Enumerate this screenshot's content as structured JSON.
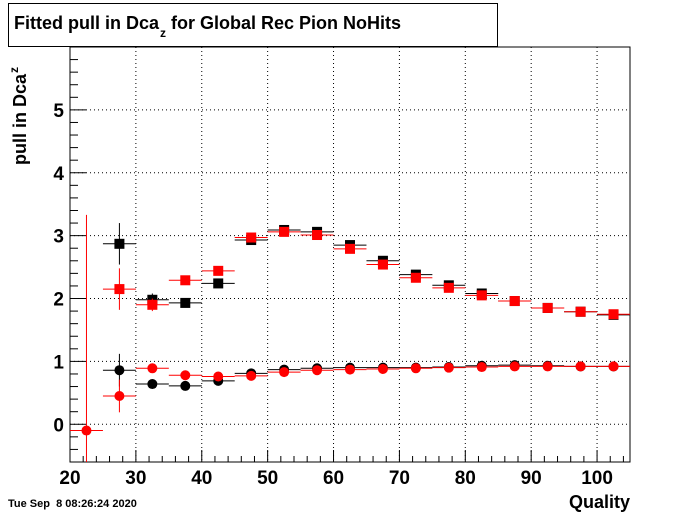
{
  "title": {
    "main": "Fitted pull in Dca",
    "sub": "z",
    "rest": " for Global Rec Pion NoHits"
  },
  "ylabel": {
    "main": "pull in Dca",
    "sub": "z"
  },
  "xlabel": "Quality",
  "timestamp": "Tue Sep  8 08:26:24 2020",
  "chart_data": {
    "type": "scatter",
    "xlim": [
      20,
      105
    ],
    "ylim": [
      -0.6,
      6.0
    ],
    "grid": true,
    "x_ticks": [
      20,
      30,
      40,
      50,
      60,
      70,
      80,
      90,
      100
    ],
    "y_ticks": [
      0,
      1,
      2,
      3,
      4,
      5
    ],
    "x_tick_labels": [
      "20",
      "30",
      "40",
      "50",
      "60",
      "70",
      "80",
      "90",
      "100"
    ],
    "y_tick_labels": [
      "0",
      "1",
      "2",
      "3",
      "4",
      "5"
    ],
    "series": [
      {
        "color": "#000000",
        "marker": "square",
        "points": [
          {
            "x": 27.5,
            "y": 2.87,
            "yerr": 0.33
          },
          {
            "x": 32.5,
            "y": 1.98,
            "yerr": 0.1
          },
          {
            "x": 37.5,
            "y": 1.93,
            "yerr": 0.05
          },
          {
            "x": 42.5,
            "y": 2.24,
            "yerr": 0.03
          },
          {
            "x": 47.5,
            "y": 2.93,
            "yerr": 0.03
          },
          {
            "x": 52.5,
            "y": 3.09,
            "yerr": 0.03
          },
          {
            "x": 57.5,
            "y": 3.06,
            "yerr": 0.03
          },
          {
            "x": 62.5,
            "y": 2.85,
            "yerr": 0.03
          },
          {
            "x": 67.5,
            "y": 2.6,
            "yerr": 0.02
          },
          {
            "x": 72.5,
            "y": 2.38,
            "yerr": 0.02
          },
          {
            "x": 77.5,
            "y": 2.21,
            "yerr": 0.02
          },
          {
            "x": 82.5,
            "y": 2.08,
            "yerr": 0.02
          },
          {
            "x": 87.5,
            "y": 1.96,
            "yerr": 0.02
          },
          {
            "x": 92.5,
            "y": 1.85,
            "yerr": 0.02
          },
          {
            "x": 97.5,
            "y": 1.79,
            "yerr": 0.02
          },
          {
            "x": 102.5,
            "y": 1.74,
            "yerr": 0.02
          }
        ]
      },
      {
        "color": "#ff0000",
        "marker": "square",
        "points": [
          {
            "x": 27.5,
            "y": 2.15,
            "yerr": 0.33
          },
          {
            "x": 32.5,
            "y": 1.9,
            "yerr": 0.1
          },
          {
            "x": 37.5,
            "y": 2.29,
            "yerr": 0.05
          },
          {
            "x": 42.5,
            "y": 2.44,
            "yerr": 0.03
          },
          {
            "x": 47.5,
            "y": 2.97,
            "yerr": 0.03
          },
          {
            "x": 52.5,
            "y": 3.06,
            "yerr": 0.03
          },
          {
            "x": 57.5,
            "y": 3.01,
            "yerr": 0.03
          },
          {
            "x": 62.5,
            "y": 2.79,
            "yerr": 0.03
          },
          {
            "x": 67.5,
            "y": 2.54,
            "yerr": 0.02
          },
          {
            "x": 72.5,
            "y": 2.33,
            "yerr": 0.02
          },
          {
            "x": 77.5,
            "y": 2.17,
            "yerr": 0.02
          },
          {
            "x": 82.5,
            "y": 2.05,
            "yerr": 0.02
          },
          {
            "x": 87.5,
            "y": 1.96,
            "yerr": 0.02
          },
          {
            "x": 92.5,
            "y": 1.85,
            "yerr": 0.02
          },
          {
            "x": 97.5,
            "y": 1.79,
            "yerr": 0.02
          },
          {
            "x": 102.5,
            "y": 1.75,
            "yerr": 0.02
          }
        ]
      },
      {
        "color": "#000000",
        "marker": "circle",
        "points": [
          {
            "x": 27.5,
            "y": 0.86,
            "yerr": 0.26
          },
          {
            "x": 32.5,
            "y": 0.64,
            "yerr": 0.05
          },
          {
            "x": 37.5,
            "y": 0.61,
            "yerr": 0.03
          },
          {
            "x": 42.5,
            "y": 0.69,
            "yerr": 0.02
          },
          {
            "x": 47.5,
            "y": 0.81,
            "yerr": 0.02
          },
          {
            "x": 52.5,
            "y": 0.87,
            "yerr": 0.02
          },
          {
            "x": 57.5,
            "y": 0.89,
            "yerr": 0.02
          },
          {
            "x": 62.5,
            "y": 0.9,
            "yerr": 0.01
          },
          {
            "x": 67.5,
            "y": 0.9,
            "yerr": 0.01
          },
          {
            "x": 72.5,
            "y": 0.9,
            "yerr": 0.01
          },
          {
            "x": 77.5,
            "y": 0.91,
            "yerr": 0.01
          },
          {
            "x": 82.5,
            "y": 0.93,
            "yerr": 0.01
          },
          {
            "x": 87.5,
            "y": 0.94,
            "yerr": 0.01
          },
          {
            "x": 92.5,
            "y": 0.93,
            "yerr": 0.01
          },
          {
            "x": 97.5,
            "y": 0.92,
            "yerr": 0.01
          },
          {
            "x": 102.5,
            "y": 0.92,
            "yerr": 0.01
          }
        ]
      },
      {
        "color": "#ff0000",
        "marker": "circle",
        "points": [
          {
            "x": 22.5,
            "y": -0.1,
            "yerr": 3.43
          },
          {
            "x": 27.5,
            "y": 0.45,
            "yerr": 0.26
          },
          {
            "x": 32.5,
            "y": 0.89,
            "yerr": 0.05
          },
          {
            "x": 37.5,
            "y": 0.78,
            "yerr": 0.03
          },
          {
            "x": 42.5,
            "y": 0.76,
            "yerr": 0.02
          },
          {
            "x": 47.5,
            "y": 0.77,
            "yerr": 0.02
          },
          {
            "x": 52.5,
            "y": 0.83,
            "yerr": 0.02
          },
          {
            "x": 57.5,
            "y": 0.86,
            "yerr": 0.02
          },
          {
            "x": 62.5,
            "y": 0.87,
            "yerr": 0.01
          },
          {
            "x": 67.5,
            "y": 0.88,
            "yerr": 0.01
          },
          {
            "x": 72.5,
            "y": 0.89,
            "yerr": 0.01
          },
          {
            "x": 77.5,
            "y": 0.9,
            "yerr": 0.01
          },
          {
            "x": 82.5,
            "y": 0.91,
            "yerr": 0.01
          },
          {
            "x": 87.5,
            "y": 0.92,
            "yerr": 0.01
          },
          {
            "x": 92.5,
            "y": 0.92,
            "yerr": 0.01
          },
          {
            "x": 97.5,
            "y": 0.92,
            "yerr": 0.01
          },
          {
            "x": 102.5,
            "y": 0.92,
            "yerr": 0.01
          }
        ]
      }
    ]
  }
}
